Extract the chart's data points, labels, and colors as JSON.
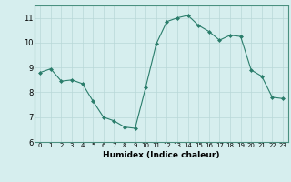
{
  "x": [
    0,
    1,
    2,
    3,
    4,
    5,
    6,
    7,
    8,
    9,
    10,
    11,
    12,
    13,
    14,
    15,
    16,
    17,
    18,
    19,
    20,
    21,
    22,
    23
  ],
  "y": [
    8.8,
    8.95,
    8.45,
    8.5,
    8.35,
    7.65,
    7.0,
    6.85,
    6.6,
    6.55,
    8.2,
    9.95,
    10.85,
    11.0,
    11.1,
    10.7,
    10.45,
    10.1,
    10.3,
    10.25,
    8.9,
    8.65,
    7.8,
    7.75
  ],
  "xlabel": "Humidex (Indice chaleur)",
  "ylim": [
    6,
    11.5
  ],
  "xlim": [
    -0.5,
    23.5
  ],
  "yticks": [
    6,
    7,
    8,
    9,
    10,
    11
  ],
  "xticks": [
    0,
    1,
    2,
    3,
    4,
    5,
    6,
    7,
    8,
    9,
    10,
    11,
    12,
    13,
    14,
    15,
    16,
    17,
    18,
    19,
    20,
    21,
    22,
    23
  ],
  "line_color": "#2a7d6b",
  "marker_color": "#2a7d6b",
  "bg_color": "#d6eeee",
  "grid_color": "#b8d8d8",
  "spine_color": "#4a9080",
  "tick_label_color": "#000000",
  "xlabel_color": "#000000",
  "ytick_fontsize": 6.0,
  "xtick_fontsize": 5.0,
  "xlabel_fontsize": 6.5
}
